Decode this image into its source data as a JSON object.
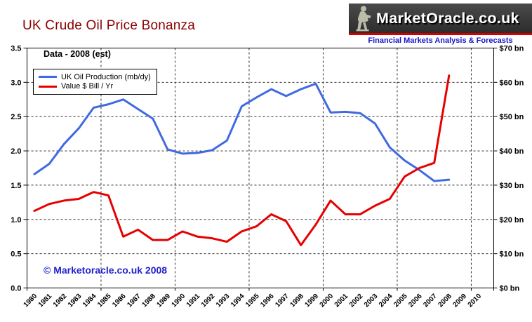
{
  "title": "UK Crude Oil Price Bonanza",
  "logo": {
    "name": "MarketOracle.co.uk",
    "tagline": "Financial Markets Analysis & Forecasts",
    "statue_icon": "seated-reader-statue",
    "banner_color": "#3b3b3b",
    "stripe_color": "#d40000",
    "tagline_color": "#1414cc"
  },
  "annotation": "Data - 2008 (est)",
  "copyright": "© Marketoracle.co.uk 2008",
  "colors": {
    "title": "#8b0000",
    "copyright": "#2222cc",
    "production_line": "#4169e1",
    "value_line": "#e60000"
  },
  "chart_data": {
    "type": "line",
    "title": "UK Crude Oil Price Bonanza",
    "grid": true,
    "legend_position": "top-left",
    "x": [
      1980,
      1981,
      1982,
      1983,
      1984,
      1985,
      1986,
      1987,
      1988,
      1989,
      1990,
      1991,
      1992,
      1993,
      1994,
      1995,
      1996,
      1997,
      1998,
      1999,
      2000,
      2001,
      2002,
      2003,
      2004,
      2005,
      2006,
      2007,
      2008
    ],
    "x_tick_labels": [
      "1980",
      "1981",
      "1982",
      "1983",
      "1984",
      "1985",
      "1986",
      "1987",
      "1988",
      "1989",
      "1990",
      "1991",
      "1992",
      "1993",
      "1994",
      "1995",
      "1996",
      "1997",
      "1998",
      "1999",
      "2000",
      "2001",
      "2002",
      "2003",
      "2004",
      "2005",
      "2006",
      "2007",
      "2008",
      "2009",
      "2010"
    ],
    "series": [
      {
        "name": "UK Oil Production (mb/dy)",
        "color": "#4169e1",
        "axis": "left",
        "values": [
          1.66,
          1.81,
          2.1,
          2.33,
          2.63,
          2.68,
          2.75,
          2.61,
          2.47,
          2.02,
          1.96,
          1.97,
          2.01,
          2.15,
          2.65,
          2.78,
          2.9,
          2.8,
          2.9,
          2.98,
          2.56,
          2.57,
          2.55,
          2.4,
          2.05,
          1.86,
          1.72,
          1.56,
          1.58
        ]
      },
      {
        "name": "Value $ Bill / Yr",
        "color": "#e60000",
        "axis": "right",
        "values": [
          22.5,
          24.5,
          25.5,
          26,
          28,
          27,
          15,
          17,
          14,
          14,
          16.5,
          15,
          14.5,
          13.5,
          16.5,
          18,
          21.5,
          19.5,
          12.5,
          18.5,
          25.5,
          21.5,
          21.5,
          24,
          26,
          32.5,
          35,
          36.5,
          62
        ]
      }
    ],
    "left_axis": {
      "min": 0,
      "max": 3.5,
      "step": 0.5,
      "tick_labels": [
        "3.5",
        "3.0",
        "2.5",
        "2.0",
        "1.5",
        "1.0",
        "0.5",
        "0.0"
      ]
    },
    "right_axis": {
      "min": 0,
      "max": 70,
      "step": 10,
      "tick_labels": [
        "$70 bn",
        "$60 bn",
        "$50 bn",
        "$40 bn",
        "$30 bn",
        "$20 bn",
        "$10 bn",
        "$0 bn"
      ]
    }
  }
}
